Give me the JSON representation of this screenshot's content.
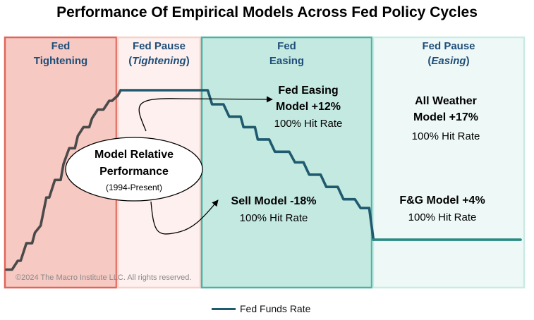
{
  "chart_data": {
    "type": "line",
    "title": "Performance Of Empirical Models Across Fed Policy Cycles",
    "xlabel": "",
    "ylabel": "",
    "copyright": "©2024 The Macro Institute LLC. All rights reserved.",
    "phases": [
      {
        "label_line1": "Fed",
        "label_line2": "Tightening",
        "label_italic": false,
        "fill": "#f6c9c2",
        "stroke": "#e0655a"
      },
      {
        "label_line1": "Fed Pause",
        "label_line2": "Tightening",
        "label_italic": true,
        "fill": "#fdf0ee",
        "stroke": "#f6d0c9"
      },
      {
        "label_line1": "Fed",
        "label_line2": "Easing",
        "label_italic": false,
        "fill": "#c4e9e1",
        "stroke": "#4bb3a3"
      },
      {
        "label_line1": "Fed Pause",
        "label_line2": "Easing",
        "label_italic": true,
        "fill": "#eef9f7",
        "stroke": "#c9ebe4"
      }
    ],
    "series": [
      {
        "name": "Fed Funds Rate",
        "segments": [
          {
            "color": "#4a4a4a",
            "x": [
              0,
              2,
              4,
              5,
              7,
              9,
              10,
              12,
              14,
              15,
              17,
              19,
              20,
              22,
              24,
              25,
              27,
              29,
              30,
              32,
              34,
              36,
              37,
              39,
              40
            ],
            "y": [
              0.5,
              0.5,
              1.0,
              1.0,
              2.0,
              2.0,
              2.6,
              3.0,
              4.6,
              4.6,
              5.6,
              5.6,
              6.5,
              7.4,
              7.4,
              8.1,
              8.6,
              8.6,
              9.1,
              9.6,
              9.6,
              10.1,
              10.1,
              10.4,
              10.7
            ]
          },
          {
            "color": "#1f5a6e",
            "x": [
              40,
              70,
              70.5,
              72,
              76,
              78,
              82,
              83,
              87,
              88,
              92,
              94,
              99,
              101,
              104,
              106,
              110,
              112,
              116,
              118,
              122,
              124,
              127,
              128.5
            ],
            "y": [
              10.7,
              10.7,
              10.7,
              9.9,
              9.9,
              9.2,
              9.2,
              8.6,
              8.6,
              7.9,
              7.9,
              7.2,
              7.2,
              6.6,
              6.6,
              5.9,
              5.9,
              5.2,
              5.2,
              4.5,
              4.5,
              4.0,
              4.0,
              2.2
            ]
          },
          {
            "color": "#2a8a84",
            "x": [
              128.5,
              180
            ],
            "y": [
              2.2,
              2.2
            ]
          }
        ]
      }
    ],
    "annotations": [
      {
        "bold": "Fed Easing",
        "bold2": "Model +12%",
        "text": "100% Hit Rate"
      },
      {
        "bold": "Sell Model -18%",
        "bold2": "",
        "text": "100% Hit Rate"
      },
      {
        "bold": "All Weather",
        "bold2": "Model +17%",
        "text": "100% Hit Rate"
      },
      {
        "bold": "F&G Model +4%",
        "bold2": "",
        "text": "100% Hit Rate"
      }
    ],
    "callout": {
      "line1": "Model Relative",
      "line2": "Performance",
      "line3": "(1994-Present)"
    }
  }
}
